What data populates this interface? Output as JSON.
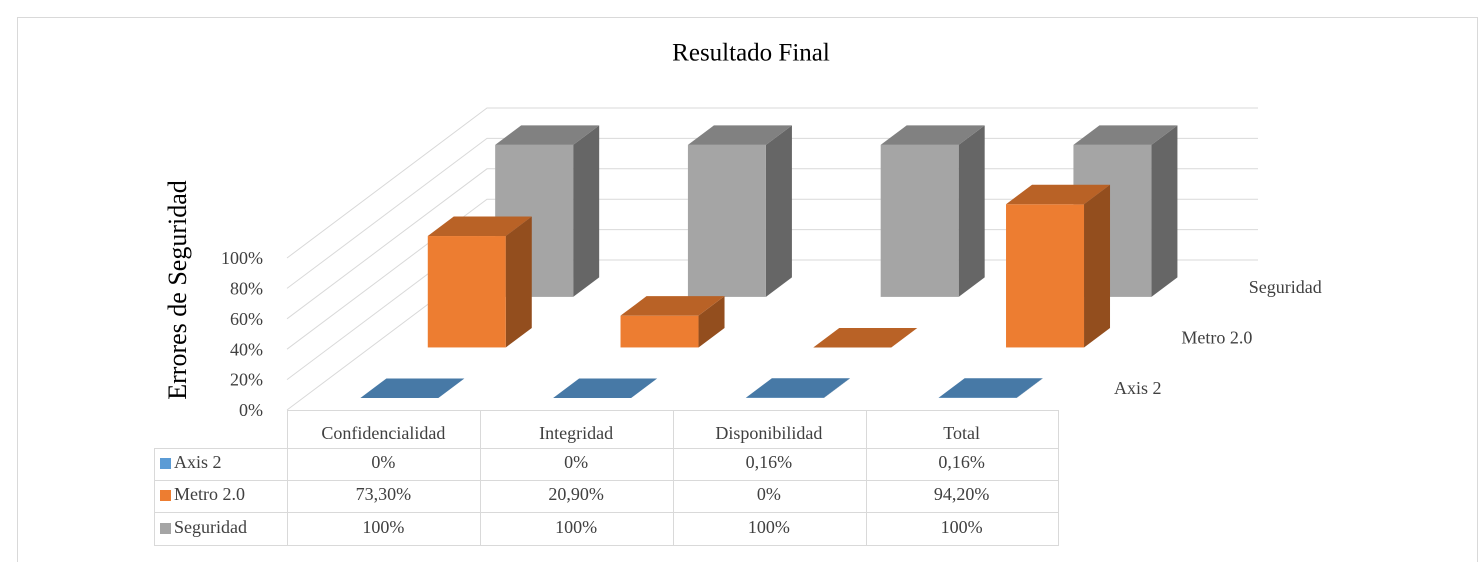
{
  "chart_data": {
    "type": "bar",
    "three_d": true,
    "title": "Resultado Final",
    "y_label": "Errores de Seguridad",
    "categories": [
      "Confidencialidad",
      "Integridad",
      "Disponibilidad",
      "Total"
    ],
    "series": [
      {
        "name": "Axis 2",
        "color": "#5b9bd5",
        "values": [
          0,
          0,
          0.16,
          0.16
        ],
        "value_labels": [
          "0%",
          "0%",
          "0,16%",
          "0,16%"
        ]
      },
      {
        "name": "Metro 2.0",
        "color": "#ed7d31",
        "values": [
          73.3,
          20.9,
          0,
          94.2
        ],
        "value_labels": [
          "73,30%",
          "20,90%",
          "0%",
          "94,20%"
        ]
      },
      {
        "name": "Seguridad",
        "color": "#a5a5a5",
        "values": [
          100,
          100,
          100,
          100
        ],
        "value_labels": [
          "100%",
          "100%",
          "100%",
          "100%"
        ]
      }
    ],
    "ylim": [
      0,
      100
    ],
    "yticks": [
      {
        "value": 0,
        "label": "0%"
      },
      {
        "value": 20,
        "label": "20%"
      },
      {
        "value": 40,
        "label": "40%"
      },
      {
        "value": 60,
        "label": "60%"
      },
      {
        "value": 80,
        "label": "80%"
      },
      {
        "value": 100,
        "label": "100%"
      }
    ],
    "grid": true,
    "data_table": true
  }
}
